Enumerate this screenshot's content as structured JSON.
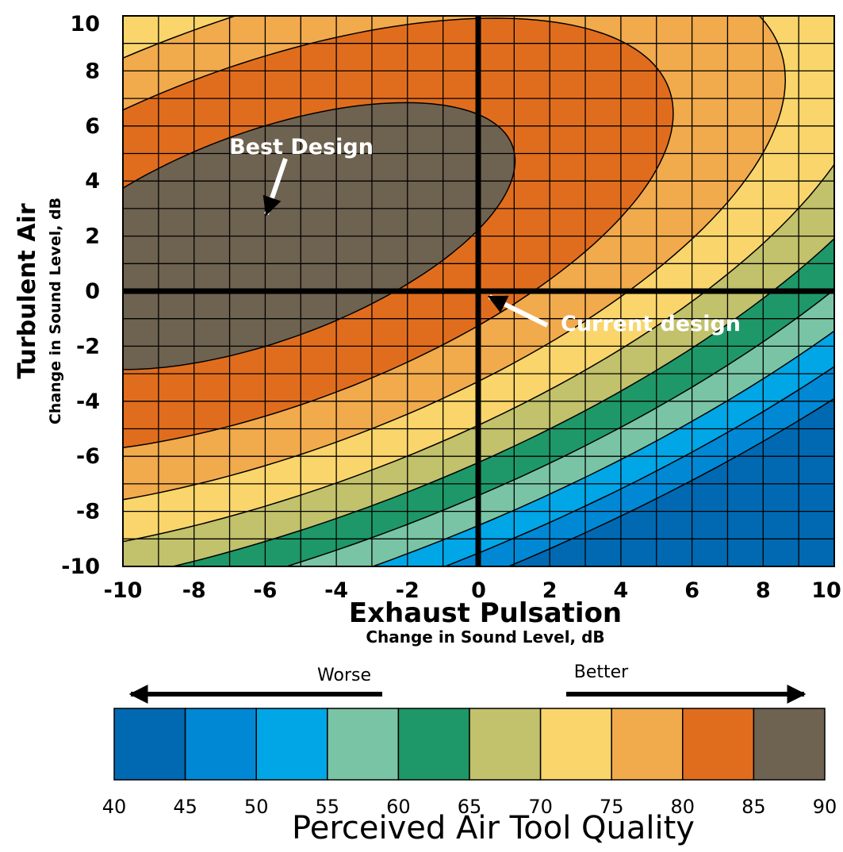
{
  "chart_data": {
    "type": "heatmap",
    "subtype": "filled-contour",
    "xlabel": "Exhaust Pulsation",
    "xlabel_sub": "Change in Sound Level, dB",
    "ylabel": "Turbulent Air",
    "ylabel_sub": "Change in Sound Level, dB",
    "xlim": [
      -10,
      10
    ],
    "ylim": [
      -10,
      10
    ],
    "x_ticks": [
      "-10",
      "-8",
      "-6",
      "-4",
      "-2",
      "0",
      "2",
      "4",
      "6",
      "8",
      "10"
    ],
    "y_ticks": [
      "10",
      "8",
      "6",
      "4",
      "2",
      "0",
      "-2",
      "-4",
      "-6",
      "-8",
      "-10"
    ],
    "grid": true,
    "optimum": {
      "x": -6,
      "y": 2,
      "value": 88
    },
    "contour_levels": [
      45,
      50,
      55,
      60,
      65,
      70,
      75,
      80,
      85
    ],
    "annotations": [
      {
        "label": "Best Design",
        "x": -6,
        "y": 2
      },
      {
        "label": "Current design",
        "x": 0,
        "y": 0
      }
    ],
    "colorbar": {
      "title": "Perceived Air Tool Quality",
      "worse_label": "Worse",
      "better_label": "Better",
      "ticks": [
        "40",
        "45",
        "50",
        "55",
        "60",
        "65",
        "70",
        "75",
        "80",
        "85",
        "90"
      ],
      "colors": [
        "#0069b2",
        "#0088d4",
        "#00a6e6",
        "#79c4a5",
        "#1e9868",
        "#c2c16c",
        "#f9d56b",
        "#f1aa4c",
        "#e06d1d",
        "#6e6250"
      ]
    }
  }
}
